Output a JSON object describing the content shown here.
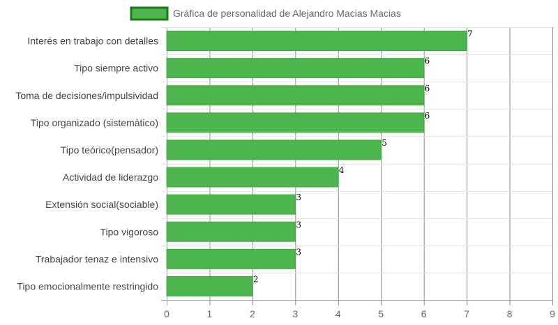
{
  "chart_data": {
    "type": "bar",
    "orientation": "horizontal",
    "categories": [
      "Interés en trabajo con detalles",
      "Tipo siempre activo",
      "Toma de decisiones/impulsividad",
      "Tipo organizado (sistemático)",
      "Tipo teórico(pensador)",
      "Actividad de liderazgo",
      "Extensión social(sociable)",
      "Tipo vigoroso",
      "Trabajador tenaz e intensivo",
      "Tipo emocionalmente restringido"
    ],
    "series": [
      {
        "name": "Gráfica de personalidad de Alejandro Macias Macias",
        "values": [
          7,
          6,
          6,
          6,
          5,
          4,
          3,
          3,
          3,
          2
        ]
      }
    ],
    "xlim": [
      0,
      9
    ],
    "x_ticks": [
      "0",
      "1",
      "2",
      "3",
      "4",
      "5",
      "6",
      "7",
      "8",
      "9"
    ],
    "grid": true,
    "legend_position": "top",
    "data_labels": true,
    "colors": {
      "bar_fill": "#4db54d",
      "bar_border": "#43a843",
      "legend_border": "#1a7a1a",
      "grid": "#cccccc"
    }
  }
}
